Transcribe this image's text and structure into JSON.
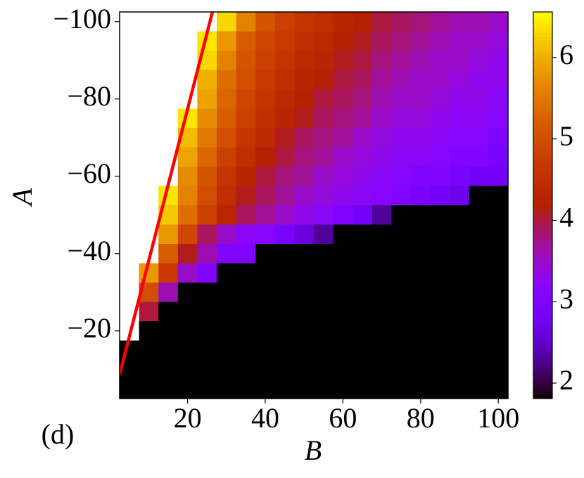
{
  "chart_data": {
    "type": "heatmap",
    "xlabel": "B",
    "ylabel": "A",
    "annotation": "(d)",
    "x": [
      5,
      10,
      15,
      20,
      25,
      30,
      35,
      40,
      45,
      50,
      55,
      60,
      65,
      70,
      75,
      80,
      85,
      90,
      95,
      100
    ],
    "y": [
      -100,
      -95,
      -90,
      -85,
      -80,
      -75,
      -70,
      -65,
      -60,
      -55,
      -50,
      -45,
      -40,
      -35,
      -30,
      -25,
      -20,
      -15,
      -10,
      -5
    ],
    "z": [
      [
        null,
        null,
        null,
        null,
        null,
        6.3,
        5.6,
        5.1,
        4.8,
        4.6,
        4.5,
        4.3,
        4.2,
        4.0,
        3.9,
        3.8,
        3.7,
        3.6,
        3.6,
        3.5
      ],
      [
        null,
        null,
        null,
        null,
        6.4,
        5.8,
        5.2,
        4.9,
        4.7,
        4.5,
        4.4,
        4.2,
        4.1,
        3.9,
        3.8,
        3.7,
        3.6,
        3.5,
        3.5,
        3.4
      ],
      [
        null,
        null,
        null,
        null,
        6.3,
        5.6,
        5.1,
        4.8,
        4.6,
        4.4,
        4.3,
        4.1,
        4.0,
        3.8,
        3.7,
        3.6,
        3.5,
        3.5,
        3.4,
        3.3
      ],
      [
        null,
        null,
        null,
        null,
        6.0,
        5.4,
        5.0,
        4.7,
        4.5,
        4.3,
        4.2,
        4.0,
        3.9,
        3.7,
        3.6,
        3.5,
        3.5,
        3.4,
        3.3,
        3.3
      ],
      [
        null,
        null,
        null,
        null,
        5.9,
        5.3,
        4.9,
        4.6,
        4.4,
        4.2,
        4.0,
        3.9,
        3.8,
        3.6,
        3.5,
        3.5,
        3.4,
        3.3,
        3.3,
        3.2
      ],
      [
        null,
        null,
        null,
        6.4,
        5.7,
        5.2,
        4.8,
        4.5,
        4.3,
        4.1,
        3.9,
        3.8,
        3.7,
        3.5,
        3.4,
        3.4,
        3.3,
        3.2,
        3.2,
        3.1
      ],
      [
        null,
        null,
        null,
        6.1,
        5.5,
        5.0,
        4.6,
        4.4,
        4.1,
        3.9,
        3.8,
        3.7,
        3.5,
        3.4,
        3.3,
        3.3,
        3.2,
        3.1,
        3.1,
        3.0
      ],
      [
        null,
        null,
        null,
        5.9,
        5.3,
        4.8,
        4.5,
        4.2,
        4.0,
        3.8,
        3.7,
        3.5,
        3.4,
        3.3,
        3.2,
        3.2,
        3.1,
        3.0,
        3.0,
        2.9
      ],
      [
        null,
        null,
        null,
        5.7,
        5.1,
        4.6,
        4.3,
        4.0,
        3.8,
        3.7,
        3.5,
        3.4,
        3.3,
        3.2,
        3.1,
        3.0,
        3.0,
        2.9,
        2.8,
        2.8
      ],
      [
        null,
        null,
        6.4,
        5.6,
        5.0,
        4.5,
        4.1,
        3.9,
        3.7,
        3.5,
        3.4,
        3.3,
        3.2,
        3.1,
        3.0,
        2.9,
        2.8,
        2.7,
        0,
        0
      ],
      [
        null,
        null,
        6.2,
        5.4,
        4.8,
        4.3,
        3.9,
        3.7,
        3.5,
        3.3,
        3.2,
        3.0,
        2.8,
        2.3,
        0,
        0,
        0,
        0,
        0,
        0
      ],
      [
        null,
        null,
        5.8,
        4.9,
        3.9,
        3.5,
        3.2,
        3.1,
        2.9,
        2.6,
        2.3,
        0,
        0,
        0,
        0,
        0,
        0,
        0,
        0,
        0
      ],
      [
        null,
        null,
        5.2,
        4.1,
        3.6,
        3.0,
        3.0,
        0,
        0,
        0,
        0,
        0,
        0,
        0,
        0,
        0,
        0,
        0,
        0,
        0
      ],
      [
        null,
        5.8,
        4.7,
        3.5,
        3.0,
        0,
        0,
        0,
        0,
        0,
        0,
        0,
        0,
        0,
        0,
        0,
        0,
        0,
        0,
        0
      ],
      [
        null,
        5.0,
        3.6,
        0,
        0,
        0,
        0,
        0,
        0,
        0,
        0,
        0,
        0,
        0,
        0,
        0,
        0,
        0,
        0,
        0
      ],
      [
        null,
        4.0,
        0,
        0,
        0,
        0,
        0,
        0,
        0,
        0,
        0,
        0,
        0,
        0,
        0,
        0,
        0,
        0,
        0,
        0
      ],
      [
        null,
        0,
        0,
        0,
        0,
        0,
        0,
        0,
        0,
        0,
        0,
        0,
        0,
        0,
        0,
        0,
        0,
        0,
        0,
        0
      ],
      [
        0,
        0,
        0,
        0,
        0,
        0,
        0,
        0,
        0,
        0,
        0,
        0,
        0,
        0,
        0,
        0,
        0,
        0,
        0,
        0
      ],
      [
        0,
        0,
        0,
        0,
        0,
        0,
        0,
        0,
        0,
        0,
        0,
        0,
        0,
        0,
        0,
        0,
        0,
        0,
        0,
        0
      ],
      [
        0,
        0,
        0,
        0,
        0,
        0,
        0,
        0,
        0,
        0,
        0,
        0,
        0,
        0,
        0,
        0,
        0,
        0,
        0,
        0
      ]
    ],
    "colormap": "gnuplot",
    "clim": [
      1.81,
      6.56
    ],
    "cticks": [
      2,
      3,
      4,
      5,
      6
    ],
    "xlim": [
      2.5,
      102.5
    ],
    "xticks": [
      20,
      40,
      60,
      80,
      100
    ],
    "ylim": [
      -2.5,
      -102.5
    ],
    "yticks": [
      {
        "value": -100,
        "label": "−100"
      },
      {
        "value": -80,
        "label": "−80"
      },
      {
        "value": -60,
        "label": "−60"
      },
      {
        "value": -40,
        "label": "−40"
      },
      {
        "value": -20,
        "label": "−20"
      }
    ],
    "line": {
      "color": "#ff0000",
      "x": [
        2.5,
        26.4
      ],
      "y": [
        -8.7,
        -102.5
      ]
    }
  }
}
